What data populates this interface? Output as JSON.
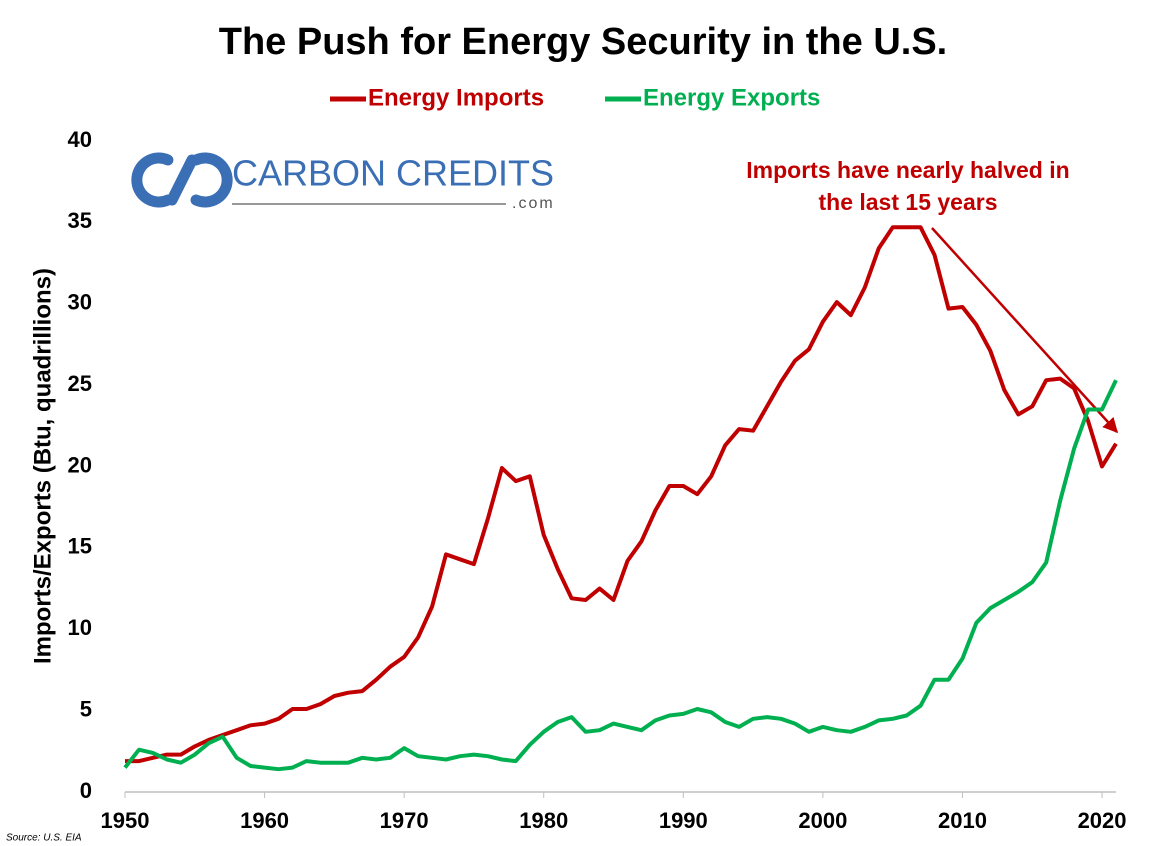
{
  "chart_data": {
    "type": "line",
    "title": "The Push for Energy Security in the U.S.",
    "y_label": "Imports/Exports (Btu, quadrillions)",
    "annotation": "Imports have nearly halved in the last 15 years",
    "source": "Source: U.S. EIA",
    "logo": {
      "name": "CARBON CREDITS",
      "suffix": ".com"
    },
    "legend": "top",
    "x": [
      1950,
      1951,
      1952,
      1953,
      1954,
      1955,
      1956,
      1957,
      1958,
      1959,
      1960,
      1961,
      1962,
      1963,
      1964,
      1965,
      1966,
      1967,
      1968,
      1969,
      1970,
      1971,
      1972,
      1973,
      1974,
      1975,
      1976,
      1977,
      1978,
      1979,
      1980,
      1981,
      1982,
      1983,
      1984,
      1985,
      1986,
      1987,
      1988,
      1989,
      1990,
      1991,
      1992,
      1993,
      1994,
      1995,
      1996,
      1997,
      1998,
      1999,
      2000,
      2001,
      2002,
      2003,
      2004,
      2005,
      2006,
      2007,
      2008,
      2009,
      2010,
      2011,
      2012,
      2013,
      2014,
      2015,
      2016,
      2017,
      2018,
      2019,
      2020,
      2021
    ],
    "series": [
      {
        "name": "Energy Imports",
        "color": "#c00000",
        "values": [
          1.9,
          1.9,
          2.1,
          2.3,
          2.3,
          2.8,
          3.2,
          3.5,
          3.8,
          4.1,
          4.2,
          4.5,
          5.1,
          5.1,
          5.4,
          5.9,
          6.1,
          6.2,
          6.9,
          7.7,
          8.3,
          9.5,
          11.4,
          14.6,
          14.3,
          14.0,
          16.8,
          19.9,
          19.1,
          19.4,
          15.8,
          13.7,
          11.9,
          11.8,
          12.5,
          11.8,
          14.2,
          15.4,
          17.3,
          18.8,
          18.8,
          18.3,
          19.4,
          21.3,
          22.3,
          22.2,
          23.7,
          25.2,
          26.5,
          27.2,
          28.9,
          30.1,
          29.3,
          31.0,
          33.4,
          34.7,
          34.7,
          34.7,
          33.0,
          29.7,
          29.8,
          28.7,
          27.1,
          24.7,
          23.2,
          23.7,
          25.3,
          25.4,
          24.8,
          22.8,
          20.0,
          21.4
        ]
      },
      {
        "name": "Energy Exports",
        "color": "#00b050",
        "values": [
          1.5,
          2.6,
          2.4,
          2.0,
          1.8,
          2.3,
          3.0,
          3.4,
          2.1,
          1.6,
          1.5,
          1.4,
          1.5,
          1.9,
          1.8,
          1.8,
          1.8,
          2.1,
          2.0,
          2.1,
          2.7,
          2.2,
          2.1,
          2.0,
          2.2,
          2.3,
          2.2,
          2.0,
          1.9,
          2.9,
          3.7,
          4.3,
          4.6,
          3.7,
          3.8,
          4.2,
          4.0,
          3.8,
          4.4,
          4.7,
          4.8,
          5.1,
          4.9,
          4.3,
          4.0,
          4.5,
          4.6,
          4.5,
          4.2,
          3.7,
          4.0,
          3.8,
          3.7,
          4.0,
          4.4,
          4.5,
          4.7,
          5.3,
          6.9,
          6.9,
          8.2,
          10.4,
          11.3,
          11.8,
          12.3,
          12.9,
          14.1,
          17.9,
          21.1,
          23.5,
          23.5,
          25.3
        ]
      }
    ],
    "xlim": [
      1950,
      2021
    ],
    "xticks": [
      1950,
      1960,
      1970,
      1980,
      1990,
      2000,
      2010,
      2020
    ],
    "ylim": [
      0,
      40
    ],
    "yticks": [
      0,
      5,
      10,
      15,
      20,
      25,
      30,
      35,
      40
    ],
    "grid": false
  }
}
